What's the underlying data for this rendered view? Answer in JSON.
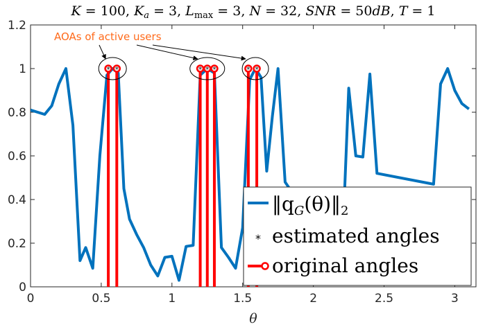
{
  "chart_data": {
    "type": "line",
    "title": "K = 100, K_a = 3, L_max = 3, N = 32, SNR = 50dB, T = 1",
    "title_parts": {
      "k": "K",
      "k_val": " = 100, ",
      "ka": "K",
      "ka_sub": "a",
      "ka_val": " = 3, ",
      "l": "L",
      "l_sub": "max",
      "l_val": " = 3, ",
      "n": "N",
      "n_val": " = 32, ",
      "snr": "SNR",
      "snr_val": " = 50",
      "db": "dB",
      "sep": ", ",
      "t": "T",
      "t_val": " = 1"
    },
    "xlabel": "θ",
    "ylabel": "",
    "xlim": [
      0,
      3.15
    ],
    "ylim": [
      0,
      1.2
    ],
    "xticks": [
      0,
      0.5,
      1,
      1.5,
      2,
      2.5,
      3
    ],
    "xtick_labels": [
      "0",
      "0.5",
      "1",
      "1.5",
      "2",
      "2.5",
      "3"
    ],
    "yticks": [
      0,
      0.2,
      0.4,
      0.6,
      0.8,
      1,
      1.2
    ],
    "ytick_labels": [
      "0",
      "0.2",
      "0.4",
      "0.6",
      "0.8",
      "1",
      "1.2"
    ],
    "grid": false,
    "legend_position": "bottom-right",
    "annotation": {
      "text": "AOAs of active users",
      "color": "#ff6a1a",
      "targets": [
        0.58,
        1.25,
        1.59
      ]
    },
    "series": [
      {
        "name": "‖q_G(θ)‖₂",
        "kind": "line",
        "color": "#0072bd",
        "points": [
          [
            0.0,
            0.81
          ],
          [
            0.1,
            0.79
          ],
          [
            0.15,
            0.83
          ],
          [
            0.2,
            0.93
          ],
          [
            0.25,
            1.0
          ],
          [
            0.3,
            0.74
          ],
          [
            0.35,
            0.12
          ],
          [
            0.39,
            0.18
          ],
          [
            0.44,
            0.085
          ],
          [
            0.49,
            0.6
          ],
          [
            0.54,
            0.97
          ],
          [
            0.58,
            1.0
          ],
          [
            0.62,
            0.98
          ],
          [
            0.66,
            0.45
          ],
          [
            0.7,
            0.31
          ],
          [
            0.75,
            0.24
          ],
          [
            0.8,
            0.18
          ],
          [
            0.85,
            0.1
          ],
          [
            0.9,
            0.05
          ],
          [
            0.95,
            0.135
          ],
          [
            1.0,
            0.14
          ],
          [
            1.05,
            0.03
          ],
          [
            1.1,
            0.185
          ],
          [
            1.15,
            0.19
          ],
          [
            1.2,
            0.97
          ],
          [
            1.25,
            1.0
          ],
          [
            1.3,
            0.98
          ],
          [
            1.35,
            0.18
          ],
          [
            1.4,
            0.135
          ],
          [
            1.45,
            0.085
          ],
          [
            1.5,
            0.27
          ],
          [
            1.55,
            0.95
          ],
          [
            1.59,
            1.0
          ],
          [
            1.63,
            0.96
          ],
          [
            1.67,
            0.53
          ],
          [
            1.71,
            0.78
          ],
          [
            1.75,
            1.0
          ],
          [
            1.8,
            0.48
          ],
          [
            2.2,
            0.1
          ],
          [
            2.25,
            0.91
          ],
          [
            2.3,
            0.6
          ],
          [
            2.35,
            0.595
          ],
          [
            2.4,
            0.975
          ],
          [
            2.45,
            0.52
          ],
          [
            2.85,
            0.47
          ],
          [
            2.9,
            0.93
          ],
          [
            2.95,
            1.0
          ],
          [
            3.0,
            0.9
          ],
          [
            3.05,
            0.84
          ],
          [
            3.1,
            0.815
          ]
        ]
      },
      {
        "name": "estimated angles",
        "kind": "stem",
        "color": "#000000",
        "marker": "*",
        "x": [
          0.55,
          0.61,
          1.2,
          1.25,
          1.3,
          1.54,
          1.6
        ],
        "y": [
          1,
          1,
          1,
          1,
          1,
          1,
          1
        ]
      },
      {
        "name": "original angles",
        "kind": "stem",
        "color": "#ff0000",
        "marker": "o",
        "x": [
          0.55,
          0.61,
          1.2,
          1.25,
          1.3,
          1.54,
          1.6
        ],
        "y": [
          1,
          1,
          1,
          1,
          1,
          1,
          1
        ]
      }
    ],
    "legend": {
      "entry1_base": "‖q",
      "entry1_sub": "G",
      "entry1_mid": "(θ)‖",
      "entry1_sub2": "2",
      "entry2": "estimated angles",
      "entry3": "original angles"
    }
  }
}
